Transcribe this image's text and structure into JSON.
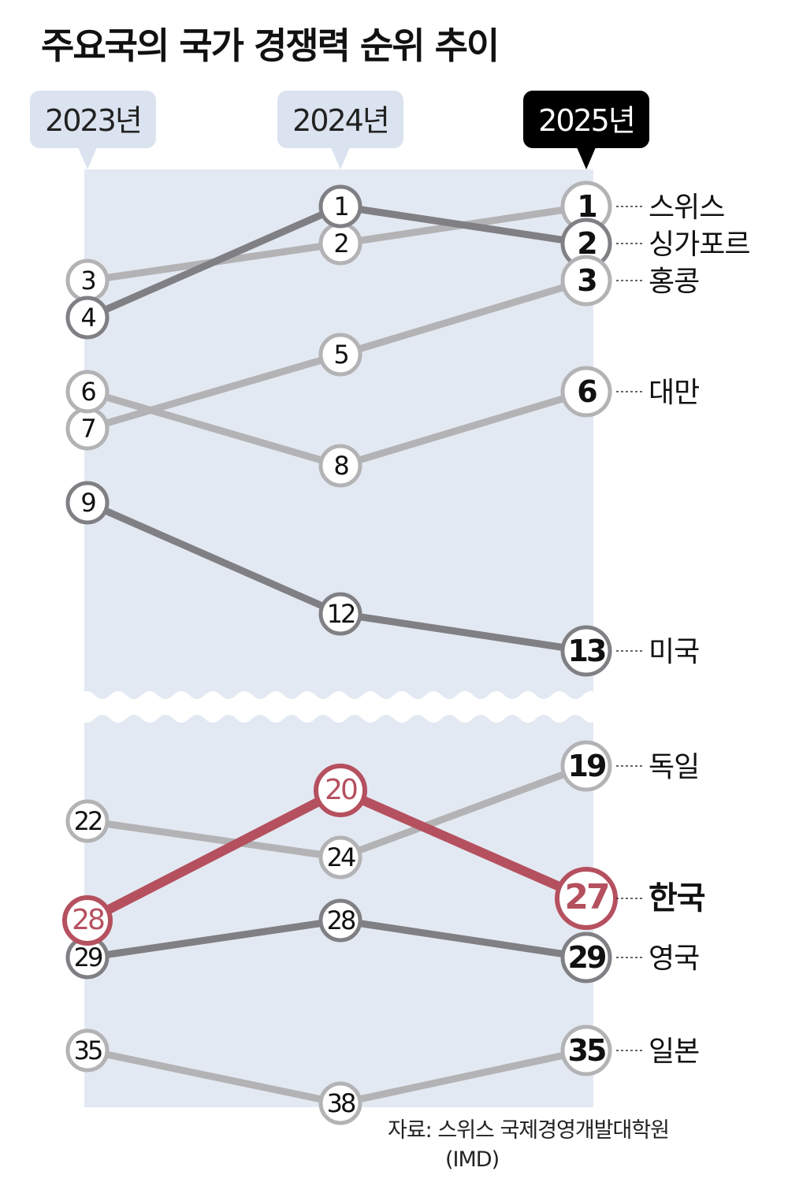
{
  "title": "주요국의 국가 경쟁력 순위 추이",
  "source": "자료: 스위스 국제경영개발대학원",
  "source_org": "(IMD)",
  "chart_data": {
    "type": "slope",
    "categories": [
      "2023년",
      "2024년",
      "2025년"
    ],
    "highlight_category": "2025년",
    "y_axis": "rank (inverted), with break between 13 and 19",
    "series": [
      {
        "name": "스위스",
        "values": [
          3,
          2,
          1
        ],
        "color": "#b3b3b5"
      },
      {
        "name": "싱가포르",
        "values": [
          4,
          1,
          2
        ],
        "color": "#808084"
      },
      {
        "name": "홍콩",
        "values": [
          7,
          5,
          3
        ],
        "color": "#b3b3b5"
      },
      {
        "name": "대만",
        "values": [
          6,
          8,
          6
        ],
        "color": "#b3b3b5"
      },
      {
        "name": "미국",
        "values": [
          9,
          12,
          13
        ],
        "color": "#808084"
      },
      {
        "name": "독일",
        "values": [
          22,
          24,
          19
        ],
        "color": "#b3b3b5"
      },
      {
        "name": "한국",
        "values": [
          28,
          20,
          27
        ],
        "color": "#b5505f",
        "highlight": true
      },
      {
        "name": "영국",
        "values": [
          29,
          28,
          29
        ],
        "color": "#808084"
      },
      {
        "name": "일본",
        "values": [
          35,
          38,
          35
        ],
        "color": "#b3b3b5"
      }
    ]
  },
  "colors": {
    "panel": "#e3e9f2",
    "bubble": "#dae3ef",
    "bubble_active": "#000000"
  }
}
